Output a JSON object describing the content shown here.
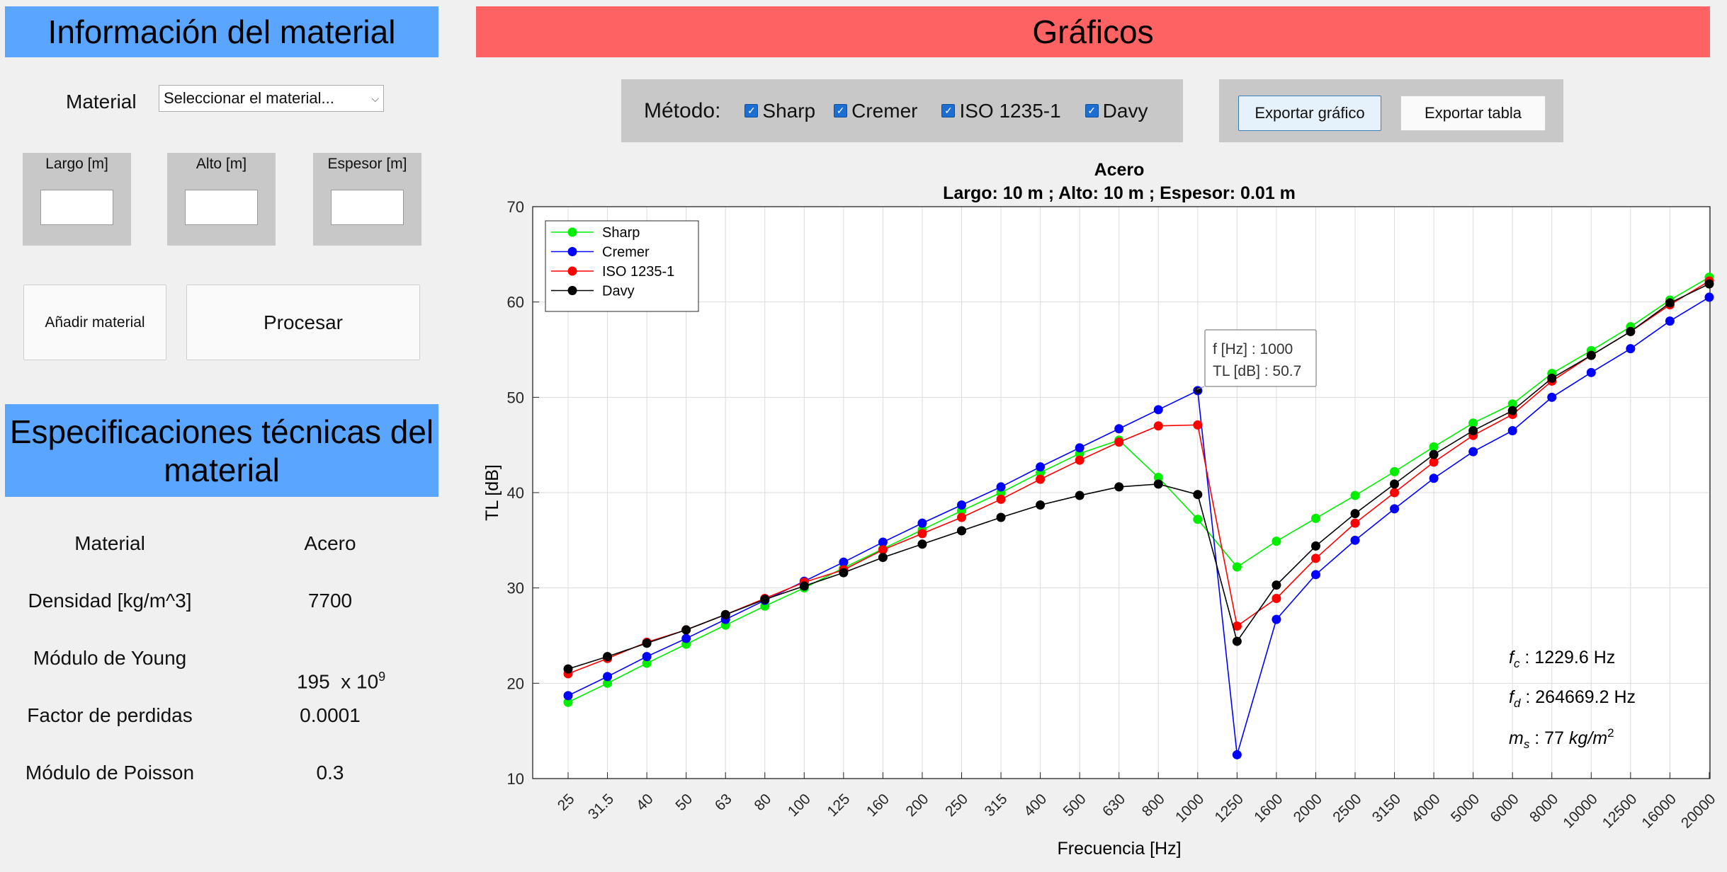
{
  "left": {
    "info_title": "Información del material",
    "material_label": "Material",
    "material_select": "Seleccionar el material...",
    "largo_label": "Largo [m]",
    "alto_label": "Alto [m]",
    "espesor_label": "Espesor [m]",
    "add_button": "Añadir material",
    "process_button": "Procesar",
    "spec_title": "Especificaciones técnicas del material",
    "specs": [
      {
        "label": "Material",
        "value": "Acero"
      },
      {
        "label": "Densidad [kg/m^3]",
        "value": "7700"
      },
      {
        "label": "Módulo de Young",
        "value": "195  x 10",
        "sup": "9"
      },
      {
        "label": "Factor de perdidas",
        "value": "0.0001"
      },
      {
        "label": "Módulo de Poisson",
        "value": "0.3"
      }
    ]
  },
  "right": {
    "graphs_title": "Gráficos",
    "method_label": "Método:",
    "methods": [
      "Sharp",
      "Cremer",
      "ISO 1235-1",
      "Davy"
    ],
    "export_graph": "Exportar gráfico",
    "export_table": "Exportar tabla"
  },
  "chart_data": {
    "type": "line",
    "title": "Acero",
    "subtitle": "Largo: 10 m ; Alto: 10 m ; Espesor: 0.01 m",
    "xlabel": "Frecuencia [Hz]",
    "ylabel": "TL [dB]",
    "ylim": [
      10,
      70
    ],
    "yticks": [
      10,
      20,
      30,
      40,
      50,
      60,
      70
    ],
    "grid": true,
    "legend_position": "top-left",
    "categories": [
      "25",
      "31.5",
      "40",
      "50",
      "63",
      "80",
      "100",
      "125",
      "160",
      "200",
      "250",
      "315",
      "400",
      "500",
      "630",
      "800",
      "1000",
      "1250",
      "1600",
      "2000",
      "2500",
      "3150",
      "4000",
      "5000",
      "6000",
      "8000",
      "10000",
      "12500",
      "16000",
      "20000"
    ],
    "series": [
      {
        "name": "Sharp",
        "color": "#00ee00",
        "values": [
          18.0,
          20.0,
          22.1,
          24.1,
          26.1,
          28.1,
          30.0,
          32.1,
          34.1,
          36.1,
          38.1,
          40.0,
          42.1,
          44.1,
          45.5,
          41.6,
          37.2,
          32.2,
          34.9,
          37.3,
          39.7,
          42.2,
          44.8,
          47.3,
          49.3,
          52.5,
          54.9,
          57.4,
          60.2,
          62.6
        ]
      },
      {
        "name": "Cremer",
        "color": "#0000ff",
        "values": [
          18.7,
          20.7,
          22.8,
          24.7,
          26.7,
          28.7,
          30.7,
          32.7,
          34.8,
          36.8,
          38.7,
          40.6,
          42.7,
          44.7,
          46.7,
          48.7,
          50.7,
          12.5,
          26.7,
          31.4,
          35.0,
          38.3,
          41.5,
          44.3,
          46.5,
          50.0,
          52.6,
          55.1,
          58.0,
          60.5
        ]
      },
      {
        "name": "ISO 1235-1",
        "color": "#ff0000",
        "values": [
          21.0,
          22.6,
          24.3,
          25.6,
          27.2,
          28.9,
          30.6,
          31.9,
          34.0,
          35.7,
          37.4,
          39.3,
          41.4,
          43.4,
          45.3,
          47.0,
          47.1,
          26.0,
          28.9,
          33.1,
          36.8,
          40.0,
          43.2,
          46.0,
          48.2,
          51.7,
          54.4,
          56.9,
          59.7,
          62.2
        ]
      },
      {
        "name": "Davy",
        "color": "#000000",
        "values": [
          21.5,
          22.8,
          24.2,
          25.6,
          27.2,
          28.8,
          30.2,
          31.6,
          33.2,
          34.6,
          36.0,
          37.4,
          38.7,
          39.7,
          40.6,
          40.9,
          39.8,
          24.4,
          30.3,
          34.4,
          37.8,
          40.9,
          44.0,
          46.5,
          48.6,
          52.0,
          54.4,
          56.9,
          59.9,
          61.9
        ]
      }
    ],
    "datatip": {
      "line1": "f [Hz] : 1000",
      "line2": "TL [dB] : 50.7"
    },
    "annotations": [
      {
        "sym": "f",
        "sub": "c",
        "rest": " : 1229.6 Hz"
      },
      {
        "sym": "f",
        "sub": "d",
        "rest": " : 264669.2 Hz"
      },
      {
        "sym": "m",
        "sub": "s",
        "rest": " : 77 ",
        "unit": "kg/m",
        "sup": "2"
      }
    ]
  }
}
